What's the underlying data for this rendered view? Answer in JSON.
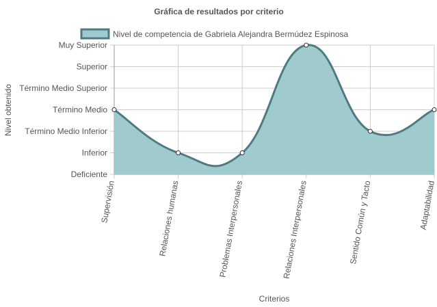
{
  "chart_data": {
    "type": "area",
    "title": "Gráfica de resultados por criterio",
    "xlabel": "Criterios",
    "ylabel": "Nivel obtenido",
    "y_levels": [
      "Deficiente",
      "Inferior",
      "Término Medio Inferior",
      "Término Medio",
      "Término Medio Superior",
      "Superior",
      "Muy Superior"
    ],
    "categories": [
      "Supervisión",
      "Relaciones humanas",
      "Problemas Interpersonales",
      "Relaciones Interpersonales",
      "Sentido Común y Tacto",
      "Adaptabilidad"
    ],
    "series": [
      {
        "name": "Nivel de competencia de Gabriela Alejandra Bermúdez Espinosa",
        "values": [
          "Término Medio",
          "Inferior",
          "Inferior",
          "Muy Superior",
          "Término Medio Inferior",
          "Término Medio"
        ],
        "level_index": [
          3,
          1,
          1,
          6,
          2,
          3
        ]
      }
    ],
    "grid": true,
    "legend_position": "top",
    "colors": {
      "fill": "#a0cbce",
      "line": "#4f7a82",
      "grid": "#cccccc",
      "axis": "#999999"
    }
  }
}
